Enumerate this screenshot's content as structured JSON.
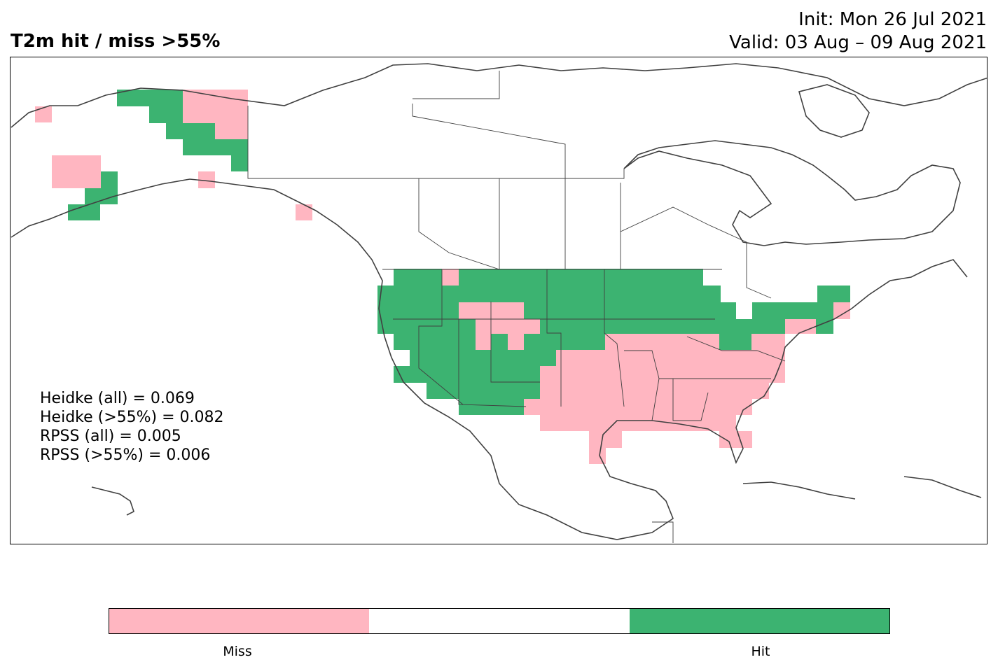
{
  "title": "T2m hit / miss  >55%",
  "init_label": "Init: Mon 26 Jul 2021",
  "valid_label": "Valid: 03 Aug – 09 Aug 2021",
  "stats": [
    "Heidke (all) = 0.069",
    "Heidke (>55%) = 0.082",
    "RPSS (all) = 0.005",
    "RPSS (>55%) = 0.006"
  ],
  "colors": {
    "miss": "#ffb6c1",
    "neutral": "#ffffff",
    "hit": "#3cb371",
    "coast": "#404040"
  },
  "colorbar": {
    "labels": [
      "Miss",
      "Hit"
    ]
  }
}
